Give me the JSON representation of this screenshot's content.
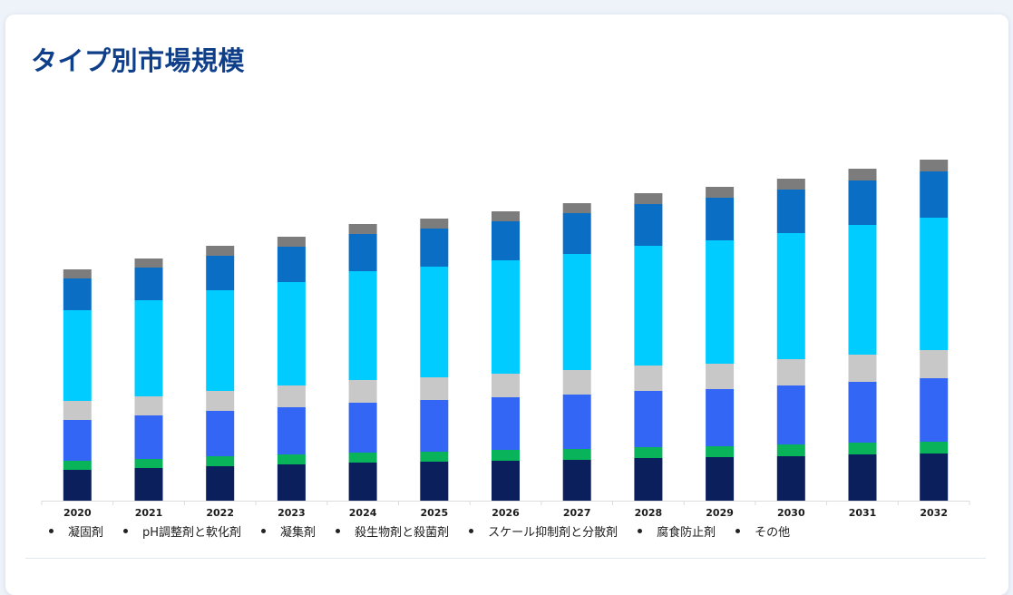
{
  "page": {
    "title": "タイプ別市場規模"
  },
  "chart_data": {
    "type": "bar",
    "stacked": true,
    "title": "タイプ別市場規模",
    "xlabel": "",
    "ylabel": "",
    "categories": [
      "2020",
      "2021",
      "2022",
      "2023",
      "2024",
      "2025",
      "2026",
      "2027",
      "2028",
      "2029",
      "2030",
      "2031",
      "2032"
    ],
    "ylim": [
      0,
      380
    ],
    "series": [
      {
        "name": "凝固剤",
        "color": "#0a1f5c",
        "values": [
          34,
          36,
          38,
          40,
          42,
          43,
          44,
          45,
          47,
          48,
          49,
          51,
          52
        ]
      },
      {
        "name": "pH調整剤と軟化剤",
        "color": "#08b35a",
        "values": [
          10,
          10,
          11,
          11,
          11,
          11,
          12,
          12,
          12,
          12,
          13,
          13,
          13
        ]
      },
      {
        "name": "凝集剤",
        "color": "#3466f5",
        "values": [
          45,
          48,
          50,
          52,
          55,
          57,
          58,
          60,
          62,
          63,
          65,
          67,
          70
        ]
      },
      {
        "name": "殺生物剤と殺菌剤",
        "color": "#c8c8c8",
        "values": [
          21,
          21,
          22,
          24,
          25,
          25,
          26,
          27,
          28,
          28,
          29,
          30,
          31
        ]
      },
      {
        "name": "スケール抑制剤と分散剤",
        "color": "#00ccff",
        "values": [
          100,
          106,
          111,
          114,
          120,
          122,
          125,
          128,
          132,
          136,
          139,
          143,
          146
        ]
      },
      {
        "name": "腐食防止剤",
        "color": "#0a6ec4",
        "values": [
          35,
          36,
          38,
          39,
          41,
          42,
          43,
          45,
          46,
          47,
          48,
          49,
          51
        ]
      },
      {
        "name": "その他",
        "color": "#7c7c7c",
        "values": [
          10,
          10,
          11,
          11,
          11,
          11,
          11,
          11,
          12,
          12,
          12,
          13,
          13
        ]
      }
    ],
    "legend_position": "bottom",
    "grid": false
  }
}
